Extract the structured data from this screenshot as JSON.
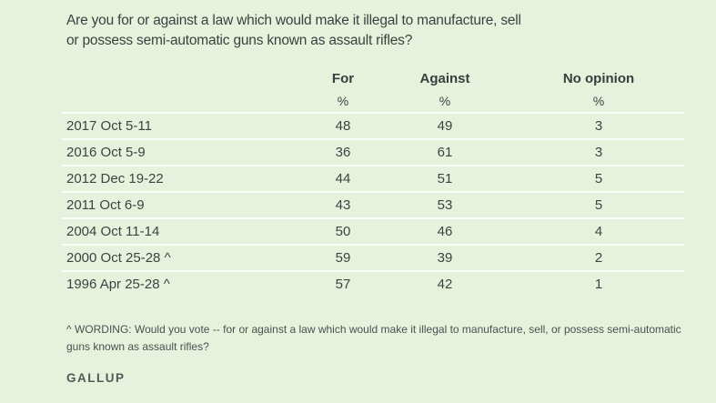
{
  "colors": {
    "background": "#e6f2db",
    "row_divider": "#fcfef9",
    "heading_text": "#3a3d40",
    "body_text": "#3f4245",
    "footnote_text": "#4c5052",
    "brand_text": "#55585a"
  },
  "title": {
    "line1": "Are you for or against a law which would make it illegal to manufacture, sell",
    "line2": "or possess semi-automatic guns known as assault rifles?"
  },
  "table": {
    "columns": [
      "For",
      "Against",
      "No opinion"
    ],
    "percent_symbol": "%",
    "rows": [
      {
        "date": "2017 Oct 5-11",
        "for": "48",
        "against": "49",
        "no_opinion": "3"
      },
      {
        "date": "2016 Oct 5-9",
        "for": "36",
        "against": "61",
        "no_opinion": "3"
      },
      {
        "date": "2012 Dec 19-22",
        "for": "44",
        "against": "51",
        "no_opinion": "5"
      },
      {
        "date": "2011 Oct 6-9",
        "for": "43",
        "against": "53",
        "no_opinion": "5"
      },
      {
        "date": "2004 Oct 11-14",
        "for": "50",
        "against": "46",
        "no_opinion": "4"
      },
      {
        "date": "2000 Oct 25-28 ^",
        "for": "59",
        "against": "39",
        "no_opinion": "2"
      },
      {
        "date": "1996 Apr 25-28 ^",
        "for": "57",
        "against": "42",
        "no_opinion": "1"
      }
    ]
  },
  "footnote": "^ WORDING: Would you vote -- for or against a law which would make it illegal to manufacture, sell, or possess semi-automatic guns known as assault rifles?",
  "brand": "GALLUP",
  "chart_data": {
    "type": "table",
    "title": "Are you for or against a law which would make it illegal to manufacture, sell or possess semi-automatic guns known as assault rifles?",
    "unit": "%",
    "categories": [
      "2017 Oct 5-11",
      "2016 Oct 5-9",
      "2012 Dec 19-22",
      "2011 Oct 6-9",
      "2004 Oct 11-14",
      "2000 Oct 25-28 ^",
      "1996 Apr 25-28 ^"
    ],
    "series": [
      {
        "name": "For",
        "values": [
          48,
          36,
          44,
          43,
          50,
          59,
          57
        ]
      },
      {
        "name": "Against",
        "values": [
          49,
          61,
          51,
          53,
          46,
          39,
          42
        ]
      },
      {
        "name": "No opinion",
        "values": [
          3,
          3,
          5,
          5,
          4,
          2,
          1
        ]
      }
    ],
    "footnote": "^ WORDING: Would you vote -- for or against a law which would make it illegal to manufacture, sell, or possess semi-automatic guns known as assault rifles?",
    "source": "GALLUP"
  }
}
